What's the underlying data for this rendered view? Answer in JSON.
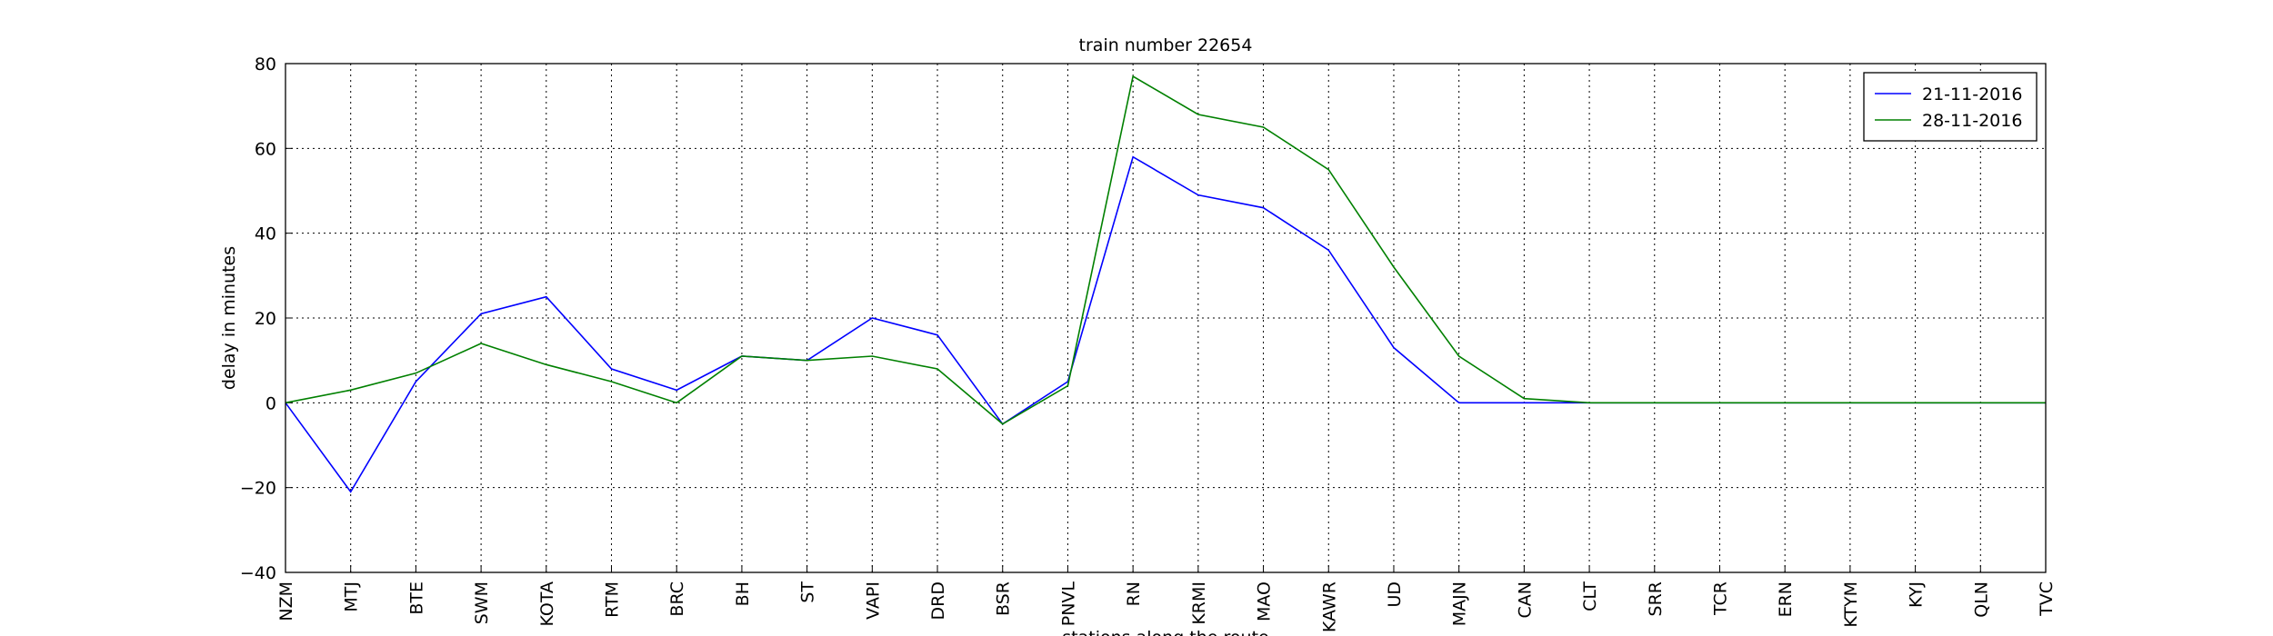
{
  "chart_data": {
    "type": "line",
    "title": "train number 22654",
    "xlabel": "stations along the route",
    "ylabel": "delay in minutes",
    "categories": [
      "NZM",
      "MTJ",
      "BTE",
      "SWM",
      "KOTA",
      "RTM",
      "BRC",
      "BH",
      "ST",
      "VAPI",
      "DRD",
      "BSR",
      "PNVL",
      "RN",
      "KRMI",
      "MAO",
      "KAWR",
      "UD",
      "MAJN",
      "CAN",
      "CLT",
      "SRR",
      "TCR",
      "ERN",
      "KTYM",
      "KYJ",
      "QLN",
      "TVC"
    ],
    "series": [
      {
        "name": "21-11-2016",
        "color": "#0000ff",
        "values": [
          0,
          -21,
          5,
          21,
          25,
          8,
          3,
          11,
          10,
          20,
          16,
          -5,
          5,
          58,
          49,
          46,
          36,
          13,
          0,
          0,
          0,
          0,
          0,
          0,
          0,
          0,
          0,
          0
        ]
      },
      {
        "name": "28-11-2016",
        "color": "#008000",
        "values": [
          0,
          3,
          7,
          14,
          9,
          5,
          0,
          11,
          10,
          11,
          8,
          -5,
          4,
          77,
          68,
          65,
          55,
          32,
          11,
          1,
          0,
          0,
          0,
          0,
          0,
          0,
          0,
          0
        ]
      }
    ],
    "ylim": [
      -40,
      80
    ],
    "yticks": [
      {
        "value": -40,
        "label": "−40"
      },
      {
        "value": -20,
        "label": "−20"
      },
      0,
      20,
      40,
      60,
      80
    ],
    "grid": true,
    "legend": "upper right"
  }
}
